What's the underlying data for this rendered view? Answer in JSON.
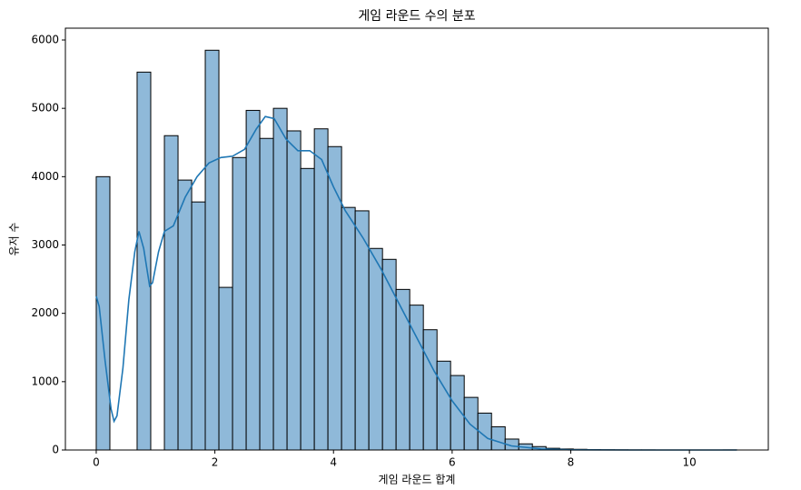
{
  "chart_data": {
    "type": "histogram",
    "title": "게임 라운드 수의 분포",
    "x_label": "게임 라운드 합계",
    "y_label": "유저 수",
    "bins": [
      0,
      0.23,
      0.46,
      0.689,
      0.919,
      1.149,
      1.379,
      1.609,
      1.838,
      2.068,
      2.298,
      2.528,
      2.757,
      2.987,
      3.217,
      3.447,
      3.677,
      3.906,
      4.136,
      4.366,
      4.596,
      4.826,
      5.055,
      5.285,
      5.515,
      5.745,
      5.974,
      6.204,
      6.434,
      6.664,
      6.894,
      7.123,
      7.353,
      7.583,
      7.813,
      8.043,
      8.272,
      8.502,
      8.732,
      8.962,
      9.191,
      9.421,
      9.651,
      9.881,
      10.111,
      10.34,
      10.57,
      10.8
    ],
    "counts": [
      4000,
      0,
      0,
      5530,
      0,
      4600,
      3950,
      3630,
      5850,
      2380,
      4280,
      4970,
      4560,
      5000,
      4670,
      4120,
      4700,
      4440,
      3550,
      3500,
      2950,
      2790,
      2350,
      2120,
      1760,
      1300,
      1090,
      770,
      540,
      340,
      160,
      90,
      50,
      25,
      15,
      10,
      5,
      3,
      2,
      1,
      1,
      0,
      0,
      0,
      0,
      0,
      1
    ],
    "color": "#8fb9d9",
    "edge_color": "#000000",
    "kde": {
      "color": "#1f77b4",
      "x": [
        0,
        0.05,
        0.15,
        0.25,
        0.3,
        0.35,
        0.45,
        0.55,
        0.65,
        0.72,
        0.8,
        0.9,
        0.95,
        1.05,
        1.15,
        1.3,
        1.5,
        1.7,
        1.9,
        2.1,
        2.3,
        2.5,
        2.7,
        2.85,
        3.0,
        3.2,
        3.4,
        3.6,
        3.8,
        4.0,
        4.2,
        4.5,
        4.8,
        5.1,
        5.4,
        5.7,
        6.0,
        6.3,
        6.6,
        7.0,
        7.5,
        8,
        9,
        10.8
      ],
      "values": [
        2250,
        2100,
        1300,
        600,
        420,
        500,
        1200,
        2200,
        2900,
        3200,
        2950,
        2400,
        2450,
        2900,
        3200,
        3280,
        3700,
        4000,
        4200,
        4280,
        4300,
        4400,
        4700,
        4880,
        4850,
        4550,
        4380,
        4380,
        4250,
        3850,
        3500,
        3100,
        2650,
        2150,
        1650,
        1150,
        720,
        380,
        170,
        60,
        15,
        3,
        0,
        0
      ]
    },
    "xlim": [
      -0.52,
      11.33
    ],
    "ylim": [
      0,
      6173
    ],
    "xticks": [
      0,
      2,
      4,
      6,
      8,
      10
    ],
    "yticks": [
      0,
      1000,
      2000,
      3000,
      4000,
      5000,
      6000
    ]
  }
}
